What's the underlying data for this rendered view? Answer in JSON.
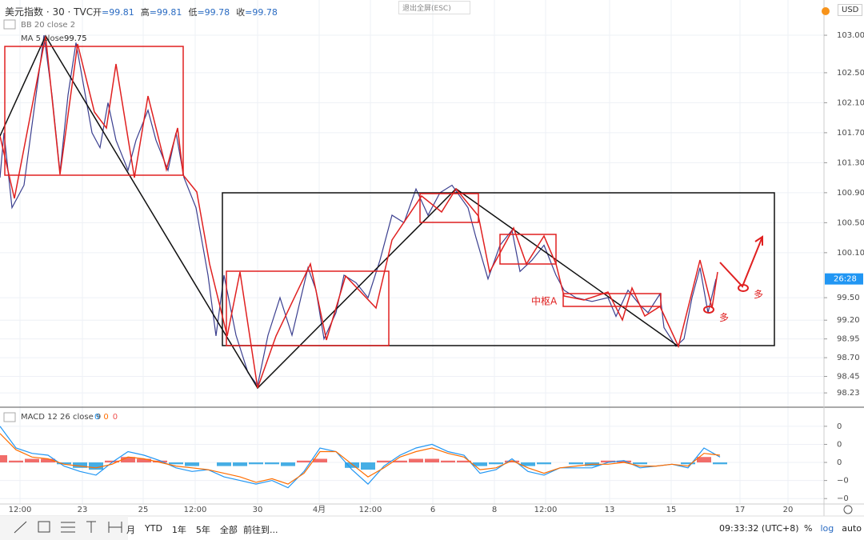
{
  "header": {
    "symbol": "美元指数 · 30 · TVC",
    "ohlc": [
      {
        "label": "开",
        "value": "=99.81"
      },
      {
        "label": "高",
        "value": "=99.81"
      },
      {
        "label": "低",
        "value": "=99.78"
      },
      {
        "label": "收",
        "value": "=99.78"
      }
    ],
    "exit_fullscreen": "退出全屏(ESC)",
    "currency": "USD",
    "bb_study": "BB 20 close 2",
    "ma_study": "MA 5 close",
    "ma_value": "99.75",
    "macd_study": "MACD 12 26 close 9",
    "macd_values": [
      {
        "text": "0",
        "color": "#2196f3"
      },
      {
        "text": "0",
        "color": "#ff6d00"
      },
      {
        "text": "0",
        "color": "#ef5350"
      }
    ]
  },
  "toolbar": {
    "ranges": [
      "月",
      "YTD",
      "1年",
      "5年",
      "全部"
    ],
    "goto": "前往到...",
    "clock": "09:33:32 (UTC+8)",
    "options": [
      "%",
      "log",
      "auto"
    ]
  },
  "chart_data": [
    {
      "type": "line",
      "countdown": "26:28",
      "grid": true,
      "x": [
        0,
        0.5,
        1.5,
        3,
        4.5,
        5.5,
        6.5,
        7.5,
        8.5,
        9.5,
        10.5,
        11.5,
        12.5,
        13.5,
        14.5,
        16,
        17,
        18.5,
        19.5,
        21,
        22,
        23,
        24.5,
        26,
        27,
        28,
        29.5,
        31,
        32.2,
        33.5,
        35,
        36.5,
        38.5,
        39.5,
        40.5,
        42,
        43,
        44.5,
        46,
        47.5,
        49,
        50.5,
        52,
        53.5,
        55,
        56.5,
        58.5,
        59.5,
        61,
        62.5,
        64,
        65,
        66.5,
        68,
        69.5,
        70.5,
        72,
        74,
        76,
        77,
        78.5,
        80,
        81,
        82.5,
        83,
        84.5,
        85.5,
        86.5,
        87.5,
        88.5,
        89.5
      ],
      "series": [
        {
          "color": "#3b3f8f",
          "values": [
            101.1,
            101.7,
            100.7,
            101.0,
            102.2,
            103.0,
            102.2,
            101.17,
            102.2,
            102.9,
            102.3,
            101.7,
            101.5,
            102.1,
            101.6,
            101.2,
            101.6,
            102.0,
            101.6,
            101.2,
            101.7,
            101.1,
            100.7,
            99.8,
            98.99,
            99.8,
            99.0,
            98.5,
            98.33,
            99.0,
            99.5,
            99.0,
            99.9,
            99.6,
            98.95,
            99.3,
            99.8,
            99.7,
            99.5,
            100.0,
            100.6,
            100.5,
            100.95,
            100.6,
            100.9,
            101.0,
            100.7,
            100.3,
            99.75,
            100.2,
            100.4,
            99.85,
            100.0,
            100.2,
            99.8,
            99.6,
            99.5,
            99.45,
            99.5,
            99.25,
            99.6,
            99.4,
            99.3,
            99.55,
            99.1,
            98.85,
            98.95,
            99.5,
            99.9,
            99.3,
            99.75
          ]
        }
      ],
      "xlim": [
        0,
        103
      ],
      "xticks": [
        {
          "value": 2.5,
          "label": "12:00"
        },
        {
          "value": 10.3,
          "label": "23"
        },
        {
          "value": 17.9,
          "label": "25"
        },
        {
          "value": 24.4,
          "label": "12:00"
        },
        {
          "value": 32.2,
          "label": "30"
        },
        {
          "value": 39.9,
          "label": "4月"
        },
        {
          "value": 46.3,
          "label": "12:00"
        },
        {
          "value": 54.1,
          "label": "6"
        },
        {
          "value": 61.8,
          "label": "8"
        },
        {
          "value": 68.2,
          "label": "12:00"
        },
        {
          "value": 76.2,
          "label": "13"
        },
        {
          "value": 83.9,
          "label": "15"
        },
        {
          "value": 92.5,
          "label": "17"
        },
        {
          "value": 98.5,
          "label": "20"
        }
      ],
      "ylim": [
        98.05,
        103.47
      ],
      "yticks": [
        {
          "value": 103,
          "label": "103.00"
        },
        {
          "value": 102.5,
          "label": "102.50"
        },
        {
          "value": 102.1,
          "label": "102.10"
        },
        {
          "value": 101.7,
          "label": "101.70"
        },
        {
          "value": 101.3,
          "label": "101.30"
        },
        {
          "value": 100.9,
          "label": "100.90"
        },
        {
          "value": 100.5,
          "label": "100.50"
        },
        {
          "value": 100.1,
          "label": "100.10"
        },
        {
          "value": 99.5,
          "label": "99.50"
        },
        {
          "value": 99.2,
          "label": "99.20"
        },
        {
          "value": 98.95,
          "label": "98.95"
        },
        {
          "value": 98.7,
          "label": "98.70"
        },
        {
          "value": 98.45,
          "label": "98.45"
        },
        {
          "value": 98.23,
          "label": "98.23"
        }
      ],
      "annotations": [
        {
          "text": "中枢A",
          "x": 66.4,
          "y": 99.45
        },
        {
          "text": "多",
          "x": 89.9,
          "y": 99.23
        },
        {
          "text": "多",
          "x": 94.2,
          "y": 99.54
        }
      ]
    },
    {
      "type": "macd",
      "x": [
        0,
        2,
        4,
        6,
        8,
        10,
        12,
        14,
        16,
        18,
        20,
        22,
        24,
        26,
        28,
        30,
        32,
        34,
        36,
        38,
        40,
        42,
        44,
        46,
        48,
        50,
        52,
        54,
        56,
        58,
        60,
        62,
        64,
        66,
        68,
        70,
        72,
        74,
        76,
        78,
        80,
        82,
        84,
        86,
        88,
        90
      ],
      "series": [
        {
          "color": "#2196f3",
          "values": [
            0.2,
            0.08,
            0.05,
            0.04,
            -0.02,
            -0.05,
            -0.07,
            0.0,
            0.06,
            0.04,
            0.01,
            -0.03,
            -0.05,
            -0.04,
            -0.08,
            -0.1,
            -0.12,
            -0.1,
            -0.14,
            -0.05,
            0.08,
            0.06,
            -0.04,
            -0.12,
            -0.02,
            0.04,
            0.08,
            0.1,
            0.06,
            0.04,
            -0.06,
            -0.04,
            0.02,
            -0.05,
            -0.07,
            -0.03,
            -0.03,
            -0.03,
            0.0,
            0.01,
            -0.03,
            -0.02,
            -0.01,
            -0.03,
            0.08,
            0.03
          ]
        },
        {
          "color": "#ff6d00",
          "values": [
            0.16,
            0.07,
            0.03,
            0.02,
            -0.01,
            -0.02,
            -0.03,
            -0.01,
            0.03,
            0.02,
            0.0,
            -0.02,
            -0.03,
            -0.04,
            -0.06,
            -0.08,
            -0.11,
            -0.09,
            -0.12,
            -0.06,
            0.06,
            0.06,
            -0.01,
            -0.08,
            -0.03,
            0.03,
            0.06,
            0.08,
            0.05,
            0.03,
            -0.04,
            -0.03,
            0.01,
            -0.03,
            -0.06,
            -0.03,
            -0.02,
            -0.01,
            -0.01,
            0.0,
            -0.02,
            -0.02,
            -0.01,
            -0.02,
            0.05,
            0.04
          ]
        }
      ],
      "histogram": {
        "positive_color": "#ef5350",
        "negative_color": "#26a0e0",
        "values": [
          0.04,
          0.01,
          0.02,
          0.02,
          -0.01,
          -0.03,
          -0.04,
          0.01,
          0.03,
          0.02,
          0.01,
          -0.01,
          -0.02,
          0.0,
          -0.02,
          -0.02,
          -0.01,
          -0.01,
          -0.02,
          0.01,
          0.02,
          0.0,
          -0.03,
          -0.04,
          0.01,
          0.01,
          0.02,
          0.02,
          0.01,
          0.01,
          -0.02,
          -0.01,
          0.01,
          -0.02,
          -0.01,
          0.0,
          -0.01,
          -0.02,
          0.01,
          0.01,
          -0.01,
          0.0,
          0.0,
          -0.01,
          0.03,
          -0.01
        ]
      },
      "xlim": [
        0,
        103
      ],
      "ylim": [
        -0.23,
        0.31
      ],
      "yticks": [
        {
          "value": 0.2,
          "label": "0"
        },
        {
          "value": 0.1,
          "label": "0"
        },
        0,
        {
          "value": -0.1,
          "label": "−0"
        },
        {
          "value": -0.2,
          "label": "−0"
        }
      ]
    }
  ]
}
